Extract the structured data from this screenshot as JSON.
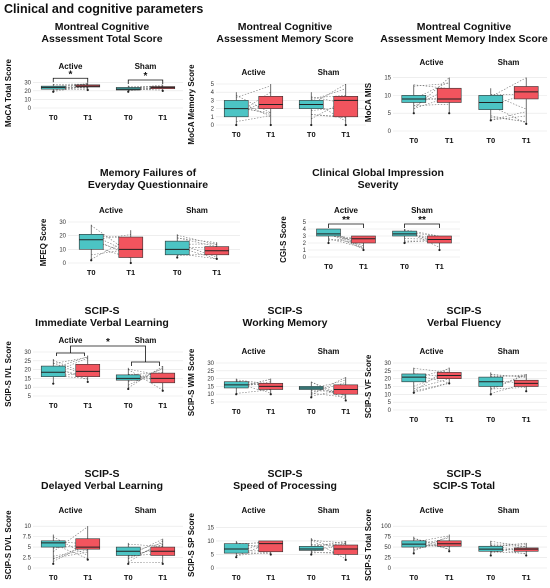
{
  "page_title": "Clinical and cognitive parameters",
  "colors": {
    "t0": "#4cc4c4",
    "t1": "#f2545e",
    "line": "#777777",
    "grid": "#e4e4e4"
  },
  "chart_data": [
    {
      "type": "box",
      "title": [
        "Montreal Cognitive",
        "Assessment Total Score"
      ],
      "ylabel": "MoCA Total Score",
      "ylim": [
        0,
        35
      ],
      "yticks": [
        0,
        10,
        20,
        30
      ],
      "facets": [
        {
          "name": "Active",
          "categories": [
            "T0",
            "T1"
          ],
          "boxes": [
            {
              "min": 19,
              "q1": 22,
              "median": 24,
              "q3": 25.5,
              "max": 28
            },
            {
              "min": 21,
              "q1": 24.5,
              "median": 25.5,
              "q3": 27,
              "max": 30
            }
          ],
          "significance": "*"
        },
        {
          "name": "Sham",
          "categories": [
            "T0",
            "T1"
          ],
          "boxes": [
            {
              "min": 19,
              "q1": 21,
              "median": 22,
              "q3": 24,
              "max": 26
            },
            {
              "min": 20,
              "q1": 22.5,
              "median": 24,
              "q3": 25,
              "max": 27
            }
          ],
          "significance": "*"
        }
      ]
    },
    {
      "type": "box",
      "title": [
        "Montreal Cognitive",
        "Assessment Memory Score"
      ],
      "ylabel": "MoCA Memory Score",
      "ylim": [
        0,
        5
      ],
      "yticks": [
        0,
        1,
        2,
        3,
        4,
        5
      ],
      "facets": [
        {
          "name": "Active",
          "categories": [
            "T0",
            "T1"
          ],
          "boxes": [
            {
              "min": 0,
              "q1": 1,
              "median": 2,
              "q3": 3,
              "max": 4
            },
            {
              "min": 0,
              "q1": 2,
              "median": 2.5,
              "q3": 3.5,
              "max": 5
            }
          ]
        },
        {
          "name": "Sham",
          "categories": [
            "T0",
            "T1"
          ],
          "boxes": [
            {
              "min": 0,
              "q1": 2,
              "median": 2.5,
              "q3": 3,
              "max": 4
            },
            {
              "min": 0,
              "q1": 1,
              "median": 3,
              "q3": 3.5,
              "max": 5
            }
          ]
        }
      ]
    },
    {
      "type": "box",
      "title": [
        "Montreal Cognitive",
        "Assessment Memory Index Score"
      ],
      "ylabel": "MoCA MIS",
      "ylim": [
        0,
        16
      ],
      "yticks": [
        0,
        5,
        10,
        15
      ],
      "facets": [
        {
          "name": "Active",
          "categories": [
            "T0",
            "T1"
          ],
          "boxes": [
            {
              "min": 5,
              "q1": 8,
              "median": 9,
              "q3": 10,
              "max": 13
            },
            {
              "min": 5,
              "q1": 8,
              "median": 9,
              "q3": 12,
              "max": 15
            }
          ]
        },
        {
          "name": "Sham",
          "categories": [
            "T0",
            "T1"
          ],
          "boxes": [
            {
              "min": 3,
              "q1": 6,
              "median": 8,
              "q3": 10,
              "max": 12
            },
            {
              "min": 2,
              "q1": 9,
              "median": 11,
              "q3": 12.5,
              "max": 15
            }
          ]
        }
      ]
    },
    {
      "type": "box",
      "title": [
        "Memory Failures of",
        "Everyday Questionnaire"
      ],
      "ylabel": "MFEQ Score",
      "ylim": [
        0,
        30
      ],
      "yticks": [
        0,
        10,
        20,
        30
      ],
      "facets": [
        {
          "name": "Active",
          "categories": [
            "T0",
            "T1"
          ],
          "boxes": [
            {
              "min": 2,
              "q1": 10,
              "median": 17,
              "q3": 21,
              "max": 28
            },
            {
              "min": 0,
              "q1": 4,
              "median": 10,
              "q3": 19,
              "max": 24
            }
          ]
        },
        {
          "name": "Sham",
          "categories": [
            "T0",
            "T1"
          ],
          "boxes": [
            {
              "min": 4,
              "q1": 6,
              "median": 10,
              "q3": 16,
              "max": 21
            },
            {
              "min": 3,
              "q1": 6,
              "median": 9,
              "q3": 12,
              "max": 15
            }
          ]
        }
      ]
    },
    {
      "type": "box",
      "title": [
        "Clinical Global Impression",
        "Severity"
      ],
      "ylabel": "CGI-S Score",
      "ylim": [
        0,
        5
      ],
      "yticks": [
        0,
        1,
        2,
        3,
        4,
        5
      ],
      "facets": [
        {
          "name": "Active",
          "categories": [
            "T0",
            "T1"
          ],
          "boxes": [
            {
              "min": 2,
              "q1": 3,
              "median": 3.3,
              "q3": 4,
              "max": 4
            },
            {
              "min": 1,
              "q1": 2,
              "median": 2.6,
              "q3": 3,
              "max": 3
            }
          ],
          "significance": "**"
        },
        {
          "name": "Sham",
          "categories": [
            "T0",
            "T1"
          ],
          "boxes": [
            {
              "min": 2,
              "q1": 3,
              "median": 3.3,
              "q3": 3.7,
              "max": 4
            },
            {
              "min": 1,
              "q1": 2,
              "median": 2.5,
              "q3": 3,
              "max": 3
            }
          ],
          "significance": "**"
        }
      ]
    },
    {
      "type": "box",
      "title": [
        "SCIP-S",
        "Immediate Verbal Learning"
      ],
      "ylabel": "SCIP-S IVL Score",
      "ylim": [
        5,
        30
      ],
      "yticks": [
        5,
        10,
        15,
        20,
        25,
        30
      ],
      "group_significance": "*",
      "facets": [
        {
          "name": "Active",
          "categories": [
            "T0",
            "T1"
          ],
          "boxes": [
            {
              "min": 12,
              "q1": 16,
              "median": 18.5,
              "q3": 22,
              "max": 26
            },
            {
              "min": 13,
              "q1": 16,
              "median": 19,
              "q3": 23,
              "max": 28
            }
          ]
        },
        {
          "name": "Sham",
          "categories": [
            "T0",
            "T1"
          ],
          "boxes": [
            {
              "min": 9,
              "q1": 14,
              "median": 15,
              "q3": 17,
              "max": 21
            },
            {
              "min": 8,
              "q1": 12.5,
              "median": 15,
              "q3": 18,
              "max": 22
            }
          ]
        }
      ]
    },
    {
      "type": "box",
      "title": [
        "SCIP-S",
        "Working Memory"
      ],
      "ylabel": "SCIP-S WM Score",
      "ylim": [
        5,
        30
      ],
      "yticks": [
        5,
        10,
        15,
        20,
        25,
        30
      ],
      "facets": [
        {
          "name": "Active",
          "categories": [
            "T0",
            "T1"
          ],
          "boxes": [
            {
              "min": 10,
              "q1": 14,
              "median": 16,
              "q3": 18,
              "max": 20
            },
            {
              "min": 10,
              "q1": 13,
              "median": 15,
              "q3": 17,
              "max": 20
            }
          ]
        },
        {
          "name": "Sham",
          "categories": [
            "T0",
            "T1"
          ],
          "boxes": [
            {
              "min": 8,
              "q1": 13,
              "median": 14,
              "q3": 15,
              "max": 18
            },
            {
              "min": 6,
              "q1": 10,
              "median": 13,
              "q3": 16,
              "max": 21
            }
          ]
        }
      ]
    },
    {
      "type": "box",
      "title": [
        "SCIP-S",
        "Verbal Fluency"
      ],
      "ylabel": "SCIP-S VF Score",
      "ylim": [
        0,
        30
      ],
      "yticks": [
        0,
        5,
        10,
        15,
        20,
        25,
        30
      ],
      "facets": [
        {
          "name": "Active",
          "categories": [
            "T0",
            "T1"
          ],
          "boxes": [
            {
              "min": 11,
              "q1": 18,
              "median": 21,
              "q3": 23,
              "max": 27
            },
            {
              "min": 17,
              "q1": 20,
              "median": 22,
              "q3": 24,
              "max": 27
            }
          ]
        },
        {
          "name": "Sham",
          "categories": [
            "T0",
            "T1"
          ],
          "boxes": [
            {
              "min": 10,
              "q1": 15,
              "median": 18,
              "q3": 21,
              "max": 24
            },
            {
              "min": 12,
              "q1": 15,
              "median": 17,
              "q3": 19,
              "max": 23
            }
          ]
        }
      ]
    },
    {
      "type": "box",
      "title": [
        "SCIP-S",
        "Delayed Verbal Learning"
      ],
      "ylabel": "SCIP-S DVL Score",
      "ylim": [
        0,
        11
      ],
      "yticks": [
        0,
        2.5,
        5,
        7.5,
        10
      ],
      "facets": [
        {
          "name": "Active",
          "categories": [
            "T0",
            "T1"
          ],
          "boxes": [
            {
              "min": 1,
              "q1": 5,
              "median": 6,
              "q3": 6.5,
              "max": 8
            },
            {
              "min": 2,
              "q1": 4.5,
              "median": 5,
              "q3": 7,
              "max": 10
            }
          ]
        },
        {
          "name": "Sham",
          "categories": [
            "T0",
            "T1"
          ],
          "boxes": [
            {
              "min": 1,
              "q1": 3,
              "median": 4,
              "q3": 5,
              "max": 6
            },
            {
              "min": 1,
              "q1": 3,
              "median": 4,
              "q3": 5,
              "max": 7
            }
          ]
        }
      ]
    },
    {
      "type": "box",
      "title": [
        "SCIP-S",
        "Speed of Processing"
      ],
      "ylabel": "SCIP-S SP Score",
      "ylim": [
        0,
        17
      ],
      "yticks": [
        0,
        5,
        10,
        15
      ],
      "facets": [
        {
          "name": "Active",
          "categories": [
            "T0",
            "T1"
          ],
          "boxes": [
            {
              "min": 4,
              "q1": 5.5,
              "median": 7,
              "q3": 9,
              "max": 10
            },
            {
              "min": 5,
              "q1": 6,
              "median": 9,
              "q3": 10,
              "max": 10
            }
          ]
        },
        {
          "name": "Sham",
          "categories": [
            "T0",
            "T1"
          ],
          "boxes": [
            {
              "min": 5,
              "q1": 6.5,
              "median": 7,
              "q3": 8,
              "max": 11
            },
            {
              "min": 3,
              "q1": 5,
              "median": 7,
              "q3": 8.5,
              "max": 10
            }
          ]
        }
      ]
    },
    {
      "type": "box",
      "title": [
        "SCIP-S",
        "SCIP-S Total"
      ],
      "ylabel": "SCIP-S Total Score",
      "ylim": [
        0,
        110
      ],
      "yticks": [
        0,
        25,
        50,
        75,
        100
      ],
      "facets": [
        {
          "name": "Active",
          "categories": [
            "T0",
            "T1"
          ],
          "boxes": [
            {
              "min": 35,
              "q1": 50,
              "median": 57,
              "q3": 65,
              "max": 75
            },
            {
              "min": 40,
              "q1": 52,
              "median": 58,
              "q3": 65,
              "max": 80
            }
          ]
        },
        {
          "name": "Sham",
          "categories": [
            "T0",
            "T1"
          ],
          "boxes": [
            {
              "min": 30,
              "q1": 40,
              "median": 45,
              "q3": 52,
              "max": 65
            },
            {
              "min": 30,
              "q1": 40,
              "median": 45,
              "q3": 48,
              "max": 60
            }
          ]
        }
      ]
    }
  ]
}
